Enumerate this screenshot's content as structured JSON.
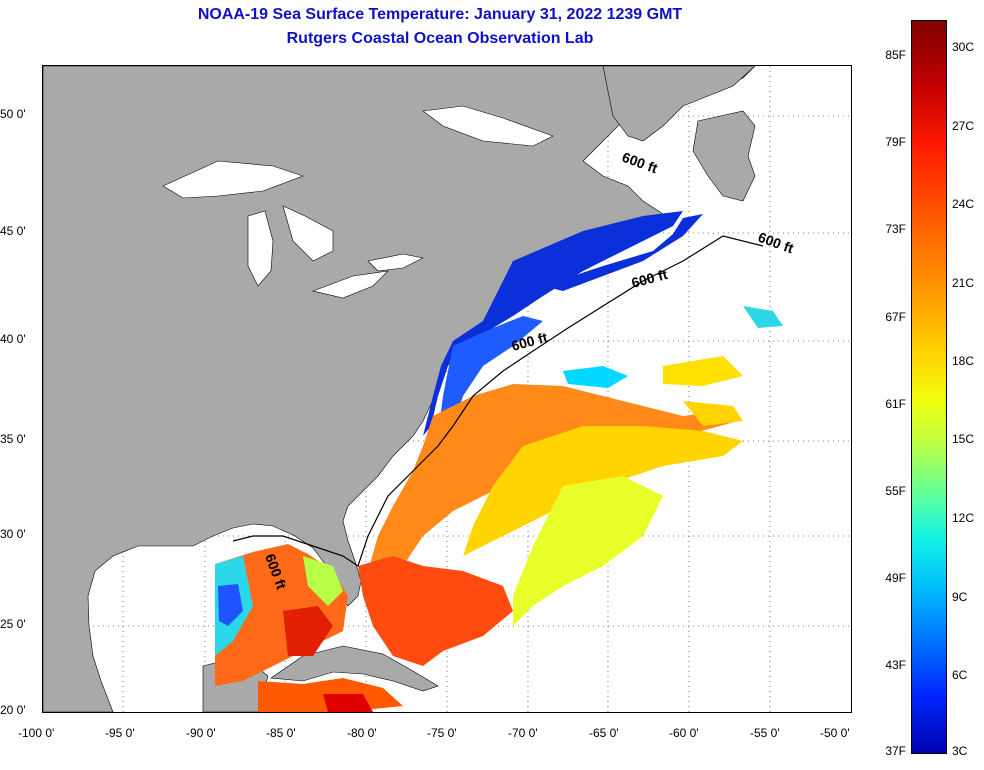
{
  "title": "NOAA-19 Sea Surface Temperature:  January 31, 2022 1239 GMT",
  "subtitle": "Rutgers Coastal Ocean Observation Lab",
  "lat_labels": [
    "50 0'",
    "45 0'",
    "40 0'",
    "35 0'",
    "30 0'",
    "25 0'",
    "20 0'"
  ],
  "lon_labels": [
    "-100 0'",
    "-95 0'",
    "-90 0'",
    "-85 0'",
    "-80 0'",
    "-75 0'",
    "-70 0'",
    "-65 0'",
    "-60 0'",
    "-55 0'",
    "-50 0'"
  ],
  "contour_label": "600 ft",
  "colorbar": {
    "f_labels": [
      "85F",
      "79F",
      "73F",
      "67F",
      "61F",
      "55F",
      "49F",
      "43F",
      "37F"
    ],
    "c_labels": [
      "30C",
      "27C",
      "24C",
      "21C",
      "18C",
      "15C",
      "12C",
      "9C",
      "6C",
      "3C"
    ]
  },
  "colors": {
    "land": "#a9a9a9",
    "title": "#1010c8",
    "water_nodata": "#ffffff"
  }
}
